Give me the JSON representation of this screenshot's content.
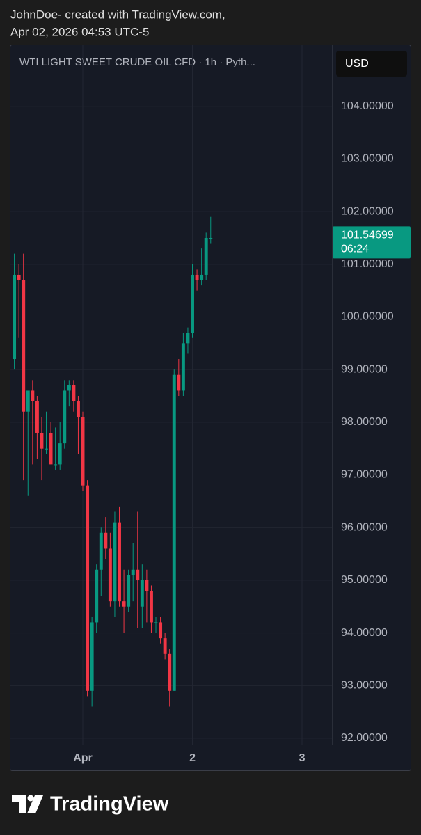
{
  "header": {
    "line1": "JohnDoe- created with TradingView.com,",
    "line2": "Apr 02, 2026 04:53 UTC-5"
  },
  "footer": {
    "brand": "TradingView"
  },
  "chart_data": {
    "type": "candlestick",
    "title": "WTI LIGHT SWEET CRUDE OIL CFD · 1h · Pyth...",
    "currency": "USD",
    "last_price": 101.54699,
    "countdown": "06:24",
    "x": [
      -15,
      -14,
      -13,
      -12,
      -11,
      -10,
      -9,
      -8,
      -7,
      -6,
      -5,
      -4,
      -3,
      -2,
      -1,
      0,
      1,
      2,
      3,
      4,
      5,
      6,
      7,
      8,
      9,
      10,
      11,
      12,
      13,
      14,
      15,
      16,
      17,
      18,
      19,
      20,
      21,
      22,
      23,
      24,
      25,
      26,
      27,
      28
    ],
    "open": [
      99.2,
      100.8,
      100.7,
      98.2,
      98.6,
      98.4,
      97.8,
      97.5,
      97.8,
      97.2,
      97.2,
      97.6,
      98.6,
      98.7,
      98.4,
      98.1,
      96.8,
      92.9,
      94.2,
      95.2,
      95.9,
      95.6,
      94.6,
      96.1,
      94.6,
      94.5,
      95.1,
      95.2,
      94.5,
      95.0,
      94.8,
      94.2,
      94.2,
      93.9,
      93.6,
      92.9,
      98.9,
      98.6,
      99.5,
      99.7,
      100.8,
      100.7,
      100.8,
      101.5
    ],
    "high": [
      101.2,
      101.0,
      101.2,
      98.6,
      98.8,
      98.5,
      98.1,
      98.2,
      98.0,
      97.9,
      98.0,
      98.8,
      98.8,
      98.8,
      98.5,
      98.2,
      96.9,
      94.3,
      95.3,
      96.0,
      96.2,
      95.9,
      96.3,
      96.4,
      95.2,
      95.2,
      95.7,
      96.3,
      95.3,
      95.2,
      94.9,
      94.3,
      94.3,
      94.0,
      93.7,
      99.0,
      99.2,
      99.7,
      99.8,
      101.0,
      100.9,
      101.3,
      101.6,
      101.9
    ],
    "low": [
      99.0,
      99.6,
      96.9,
      96.6,
      97.2,
      97.3,
      96.9,
      97.4,
      97.2,
      97.1,
      97.1,
      97.5,
      98.3,
      98.2,
      97.4,
      96.7,
      92.8,
      92.6,
      94.0,
      94.7,
      95.4,
      94.5,
      94.3,
      94.5,
      94.0,
      94.4,
      94.6,
      94.1,
      94.1,
      94.2,
      94.0,
      94.0,
      93.8,
      93.5,
      92.6,
      92.9,
      98.5,
      98.5,
      99.3,
      99.6,
      100.5,
      100.6,
      100.7,
      101.4
    ],
    "close": [
      100.8,
      100.7,
      98.2,
      98.6,
      98.4,
      97.8,
      97.5,
      97.5,
      97.2,
      97.2,
      97.6,
      98.6,
      98.7,
      98.4,
      98.1,
      96.8,
      92.9,
      94.2,
      95.2,
      95.9,
      95.6,
      94.6,
      96.1,
      94.6,
      94.5,
      95.1,
      95.2,
      95.0,
      95.0,
      94.8,
      94.2,
      94.2,
      93.9,
      93.6,
      92.9,
      98.9,
      98.6,
      99.5,
      99.7,
      100.8,
      100.7,
      100.8,
      101.5,
      101.5
    ],
    "up_color": "#089981",
    "down_color": "#f23645",
    "xlim": [
      -15.85,
      54.55
    ],
    "xticks": [
      {
        "value": 0,
        "label": "Apr"
      },
      {
        "value": 24,
        "label": "2"
      },
      {
        "value": 48,
        "label": "3"
      }
    ],
    "ylim": [
      91.88,
      105.16
    ],
    "yticks": [
      {
        "value": 92,
        "label": "92.00000"
      },
      {
        "value": 93,
        "label": "93.00000"
      },
      {
        "value": 94,
        "label": "94.00000"
      },
      {
        "value": 95,
        "label": "95.00000"
      },
      {
        "value": 96,
        "label": "96.00000"
      },
      {
        "value": 97,
        "label": "97.00000"
      },
      {
        "value": 98,
        "label": "98.00000"
      },
      {
        "value": 99,
        "label": "99.00000"
      },
      {
        "value": 100,
        "label": "100.00000"
      },
      {
        "value": 101,
        "label": "101.00000"
      },
      {
        "value": 102,
        "label": "102.00000"
      },
      {
        "value": 103,
        "label": "103.00000"
      },
      {
        "value": 104,
        "label": "104.00000"
      }
    ],
    "grid": true
  }
}
